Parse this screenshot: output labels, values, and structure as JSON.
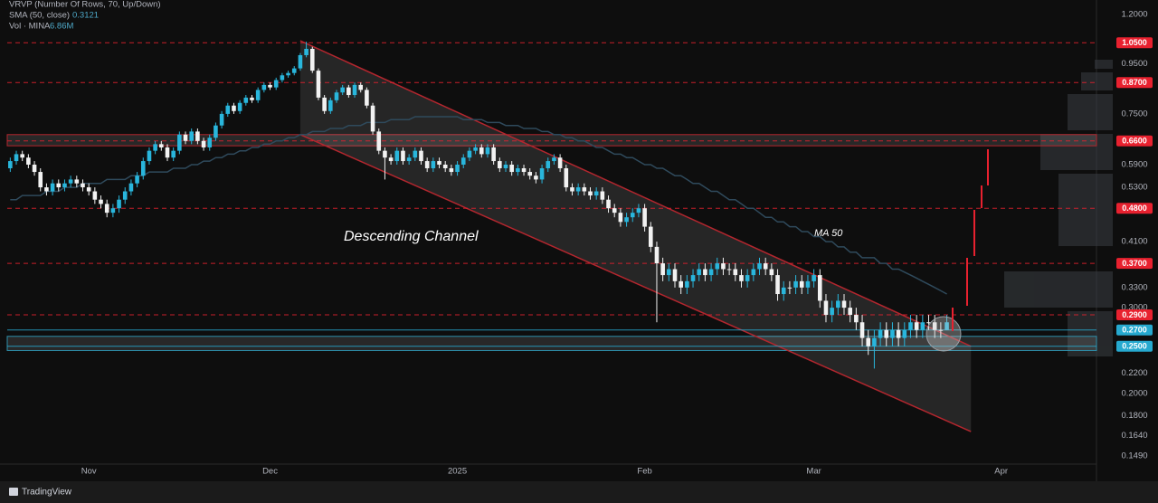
{
  "chart_data": {
    "type": "candlestick",
    "log_scale": true,
    "up_color": "#29b6dc",
    "down_color": "#f2f2f2",
    "ylim": [
      0.142,
      1.285
    ],
    "yticks": [
      {
        "value": 1.2,
        "label": "1.2000"
      },
      {
        "value": 0.95,
        "label": "0.9500"
      },
      {
        "value": 0.75,
        "label": "0.7500"
      },
      {
        "value": 0.59,
        "label": "0.5900"
      },
      {
        "value": 0.53,
        "label": "0.5300"
      },
      {
        "value": 0.41,
        "label": "0.4100"
      },
      {
        "value": 0.33,
        "label": "0.3300"
      },
      {
        "value": 0.3,
        "label": "0.3000"
      },
      {
        "value": 0.22,
        "label": "0.2200"
      },
      {
        "value": 0.2,
        "label": "0.2000"
      },
      {
        "value": 0.18,
        "label": "0.1800"
      },
      {
        "value": 0.164,
        "label": "0.1640"
      },
      {
        "value": 0.149,
        "label": "0.1490"
      }
    ],
    "categories": [
      null,
      null,
      null,
      null,
      null,
      null,
      null,
      null,
      null,
      null,
      null,
      null,
      null,
      "Nov",
      null,
      null,
      null,
      null,
      null,
      null,
      null,
      null,
      null,
      null,
      null,
      null,
      null,
      null,
      null,
      null,
      null,
      null,
      null,
      null,
      null,
      null,
      null,
      null,
      null,
      null,
      null,
      null,
      null,
      "Dec",
      null,
      null,
      null,
      null,
      null,
      null,
      null,
      null,
      null,
      null,
      null,
      null,
      null,
      null,
      null,
      null,
      null,
      null,
      null,
      null,
      null,
      null,
      null,
      null,
      null,
      null,
      null,
      null,
      null,
      null,
      "2025",
      null,
      null,
      null,
      null,
      null,
      null,
      null,
      null,
      null,
      null,
      null,
      null,
      null,
      null,
      null,
      null,
      null,
      null,
      null,
      null,
      null,
      null,
      null,
      null,
      null,
      null,
      null,
      null,
      null,
      null,
      "Feb",
      null,
      null,
      null,
      null,
      null,
      null,
      null,
      null,
      null,
      null,
      null,
      null,
      null,
      null,
      null,
      null,
      null,
      null,
      null,
      null,
      null,
      null,
      null,
      null,
      null,
      null,
      null,
      "Mar",
      null,
      null,
      null,
      null,
      null,
      null,
      null,
      null,
      null,
      null,
      null,
      null,
      null,
      null,
      null,
      null,
      null,
      null,
      null,
      null,
      null,
      null,
      null,
      null,
      null,
      null,
      null,
      null,
      null,
      null,
      "Apr"
    ],
    "candles": {
      "open": [
        0.58,
        0.6,
        0.62,
        0.61,
        0.59,
        0.57,
        0.53,
        0.52,
        0.54,
        0.53,
        0.54,
        0.55,
        0.54,
        0.53,
        0.52,
        0.5,
        0.49,
        0.47,
        0.48,
        0.5,
        0.52,
        0.54,
        0.56,
        0.6,
        0.63,
        0.65,
        0.64,
        0.61,
        0.63,
        0.68,
        0.66,
        0.69,
        0.66,
        0.64,
        0.67,
        0.71,
        0.75,
        0.78,
        0.76,
        0.79,
        0.81,
        0.8,
        0.84,
        0.86,
        0.85,
        0.88,
        0.9,
        0.91,
        0.93,
        0.99,
        1.02,
        0.92,
        0.81,
        0.76,
        0.8,
        0.83,
        0.85,
        0.82,
        0.86,
        0.84,
        0.78,
        0.69,
        0.63,
        0.61,
        0.6,
        0.63,
        0.6,
        0.61,
        0.63,
        0.6,
        0.58,
        0.6,
        0.59,
        0.58,
        0.57,
        0.59,
        0.61,
        0.63,
        0.64,
        0.62,
        0.64,
        0.6,
        0.58,
        0.59,
        0.57,
        0.58,
        0.57,
        0.56,
        0.55,
        0.58,
        0.6,
        0.61,
        0.58,
        0.53,
        0.52,
        0.53,
        0.52,
        0.51,
        0.52,
        0.5,
        0.48,
        0.47,
        0.45,
        0.46,
        0.47,
        0.48,
        0.44,
        0.4,
        0.37,
        0.35,
        0.36,
        0.34,
        0.33,
        0.34,
        0.35,
        0.36,
        0.35,
        0.36,
        0.37,
        0.36,
        0.36,
        0.35,
        0.34,
        0.35,
        0.36,
        0.37,
        0.36,
        0.35,
        0.32,
        0.33,
        0.33,
        0.34,
        0.33,
        0.34,
        0.35,
        0.31,
        0.29,
        0.3,
        0.31,
        0.3,
        0.29,
        0.28,
        0.26,
        0.25,
        0.26,
        0.27,
        0.26,
        0.27,
        0.26,
        0.27,
        0.28,
        0.27,
        0.28,
        0.28,
        0.27,
        0.27,
        null,
        null,
        null,
        null,
        null,
        null,
        null,
        null,
        null
      ],
      "high": [
        0.61,
        0.63,
        0.63,
        0.62,
        0.6,
        0.58,
        0.54,
        0.55,
        0.55,
        0.55,
        0.56,
        0.56,
        0.55,
        0.54,
        0.53,
        0.51,
        0.5,
        0.49,
        0.51,
        0.53,
        0.55,
        0.57,
        0.61,
        0.64,
        0.66,
        0.66,
        0.65,
        0.64,
        0.69,
        0.69,
        0.7,
        0.7,
        0.67,
        0.68,
        0.72,
        0.76,
        0.79,
        0.79,
        0.8,
        0.82,
        0.82,
        0.85,
        0.87,
        0.87,
        0.89,
        0.91,
        0.92,
        0.94,
        1.0,
        1.055,
        1.03,
        0.93,
        0.82,
        0.81,
        0.84,
        0.86,
        0.86,
        0.87,
        0.87,
        0.85,
        0.79,
        0.7,
        0.64,
        0.62,
        0.64,
        0.64,
        0.62,
        0.64,
        0.64,
        0.61,
        0.61,
        0.61,
        0.6,
        0.59,
        0.6,
        0.62,
        0.64,
        0.65,
        0.65,
        0.65,
        0.65,
        0.61,
        0.6,
        0.6,
        0.59,
        0.59,
        0.58,
        0.57,
        0.59,
        0.61,
        0.62,
        0.62,
        0.59,
        0.54,
        0.54,
        0.54,
        0.53,
        0.53,
        0.53,
        0.51,
        0.49,
        0.48,
        0.47,
        0.48,
        0.49,
        0.49,
        0.45,
        0.41,
        0.38,
        0.37,
        0.37,
        0.35,
        0.35,
        0.36,
        0.37,
        0.37,
        0.37,
        0.38,
        0.38,
        0.37,
        0.37,
        0.36,
        0.36,
        0.37,
        0.38,
        0.38,
        0.37,
        0.36,
        0.34,
        0.34,
        0.35,
        0.35,
        0.35,
        0.36,
        0.36,
        0.32,
        0.31,
        0.32,
        0.32,
        0.31,
        0.3,
        0.29,
        0.27,
        0.27,
        0.28,
        0.28,
        0.28,
        0.28,
        0.28,
        0.29,
        0.29,
        0.29,
        0.29,
        0.29,
        0.28,
        0.29,
        null,
        null,
        null,
        null,
        null,
        null,
        null,
        null,
        null
      ],
      "low": [
        0.57,
        0.59,
        0.6,
        0.58,
        0.56,
        0.52,
        0.51,
        0.51,
        0.52,
        0.52,
        0.53,
        0.53,
        0.52,
        0.51,
        0.49,
        0.48,
        0.46,
        0.46,
        0.47,
        0.49,
        0.51,
        0.53,
        0.55,
        0.59,
        0.62,
        0.63,
        0.6,
        0.6,
        0.62,
        0.65,
        0.65,
        0.65,
        0.63,
        0.63,
        0.66,
        0.7,
        0.74,
        0.75,
        0.75,
        0.78,
        0.79,
        0.79,
        0.83,
        0.84,
        0.84,
        0.87,
        0.89,
        0.9,
        0.92,
        0.98,
        0.91,
        0.8,
        0.75,
        0.75,
        0.79,
        0.82,
        0.81,
        0.81,
        0.83,
        0.77,
        0.68,
        0.62,
        0.55,
        0.59,
        0.59,
        0.59,
        0.59,
        0.6,
        0.59,
        0.57,
        0.57,
        0.58,
        0.57,
        0.56,
        0.56,
        0.58,
        0.6,
        0.62,
        0.61,
        0.61,
        0.59,
        0.57,
        0.57,
        0.56,
        0.56,
        0.56,
        0.55,
        0.54,
        0.54,
        0.57,
        0.59,
        0.57,
        0.52,
        0.51,
        0.51,
        0.51,
        0.5,
        0.5,
        0.49,
        0.47,
        0.46,
        0.44,
        0.44,
        0.45,
        0.46,
        0.43,
        0.39,
        0.28,
        0.34,
        0.34,
        0.33,
        0.32,
        0.32,
        0.33,
        0.34,
        0.34,
        0.34,
        0.35,
        0.35,
        0.35,
        0.34,
        0.33,
        0.33,
        0.34,
        0.35,
        0.35,
        0.34,
        0.31,
        0.31,
        0.32,
        0.32,
        0.32,
        0.32,
        0.33,
        0.3,
        0.28,
        0.28,
        0.29,
        0.29,
        0.28,
        0.27,
        0.25,
        0.24,
        0.225,
        0.25,
        0.25,
        0.25,
        0.25,
        0.25,
        0.26,
        0.26,
        0.26,
        0.27,
        0.26,
        0.26,
        0.27,
        null,
        null,
        null,
        null,
        null,
        null,
        null,
        null,
        null
      ],
      "close": [
        0.6,
        0.62,
        0.61,
        0.59,
        0.57,
        0.53,
        0.52,
        0.54,
        0.53,
        0.54,
        0.55,
        0.54,
        0.53,
        0.52,
        0.5,
        0.49,
        0.47,
        0.48,
        0.5,
        0.52,
        0.54,
        0.56,
        0.6,
        0.63,
        0.65,
        0.64,
        0.61,
        0.63,
        0.68,
        0.66,
        0.69,
        0.66,
        0.64,
        0.67,
        0.71,
        0.75,
        0.78,
        0.76,
        0.79,
        0.81,
        0.8,
        0.84,
        0.86,
        0.85,
        0.88,
        0.9,
        0.91,
        0.93,
        0.99,
        1.02,
        0.92,
        0.81,
        0.76,
        0.8,
        0.83,
        0.85,
        0.82,
        0.86,
        0.84,
        0.78,
        0.69,
        0.63,
        0.61,
        0.6,
        0.63,
        0.6,
        0.61,
        0.63,
        0.6,
        0.58,
        0.6,
        0.59,
        0.58,
        0.57,
        0.59,
        0.61,
        0.63,
        0.64,
        0.62,
        0.64,
        0.6,
        0.58,
        0.59,
        0.57,
        0.58,
        0.57,
        0.56,
        0.55,
        0.58,
        0.6,
        0.61,
        0.58,
        0.53,
        0.52,
        0.53,
        0.52,
        0.51,
        0.52,
        0.5,
        0.48,
        0.47,
        0.45,
        0.46,
        0.47,
        0.48,
        0.44,
        0.4,
        0.37,
        0.35,
        0.36,
        0.34,
        0.33,
        0.34,
        0.35,
        0.36,
        0.35,
        0.36,
        0.37,
        0.36,
        0.36,
        0.35,
        0.34,
        0.35,
        0.36,
        0.37,
        0.36,
        0.35,
        0.32,
        0.33,
        0.33,
        0.34,
        0.33,
        0.34,
        0.35,
        0.31,
        0.29,
        0.3,
        0.31,
        0.3,
        0.29,
        0.28,
        0.26,
        0.25,
        0.26,
        0.27,
        0.26,
        0.27,
        0.26,
        0.27,
        0.28,
        0.27,
        0.28,
        0.28,
        0.27,
        0.27,
        0.28,
        null,
        null,
        null,
        null,
        null,
        null,
        null,
        null,
        null
      ]
    },
    "ma": {
      "label": "MA 50",
      "color": "#2f4a5c",
      "values": [
        0.5,
        0.5,
        0.51,
        0.51,
        0.51,
        0.51,
        0.52,
        0.52,
        0.52,
        0.53,
        0.53,
        0.53,
        0.54,
        0.54,
        0.54,
        0.54,
        0.55,
        0.55,
        0.55,
        0.55,
        0.56,
        0.56,
        0.56,
        0.57,
        0.57,
        0.57,
        0.57,
        0.58,
        0.58,
        0.58,
        0.59,
        0.59,
        0.6,
        0.6,
        0.61,
        0.61,
        0.62,
        0.62,
        0.63,
        0.63,
        0.64,
        0.64,
        0.65,
        0.65,
        0.66,
        0.66,
        0.67,
        0.67,
        0.68,
        0.68,
        0.69,
        0.69,
        0.69,
        0.7,
        0.7,
        0.7,
        0.71,
        0.71,
        0.71,
        0.72,
        0.72,
        0.72,
        0.72,
        0.73,
        0.73,
        0.73,
        0.73,
        0.74,
        0.74,
        0.74,
        0.74,
        0.74,
        0.74,
        0.74,
        0.74,
        0.73,
        0.73,
        0.73,
        0.73,
        0.72,
        0.72,
        0.72,
        0.71,
        0.71,
        0.71,
        0.7,
        0.7,
        0.7,
        0.69,
        0.69,
        0.68,
        0.68,
        0.67,
        0.67,
        0.66,
        0.66,
        0.65,
        0.64,
        0.64,
        0.63,
        0.62,
        0.62,
        0.61,
        0.61,
        0.6,
        0.59,
        0.59,
        0.58,
        0.58,
        0.57,
        0.56,
        0.56,
        0.55,
        0.54,
        0.54,
        0.53,
        0.52,
        0.52,
        0.51,
        0.5,
        0.5,
        0.49,
        0.48,
        0.48,
        0.47,
        0.46,
        0.46,
        0.45,
        0.45,
        0.44,
        0.44,
        0.43,
        0.43,
        0.42,
        0.42,
        0.41,
        0.41,
        0.4,
        0.4,
        0.39,
        0.39,
        0.38,
        0.38,
        0.38,
        0.37,
        0.37,
        0.36,
        0.36,
        0.355,
        0.35,
        0.345,
        0.34,
        0.335,
        0.33,
        0.325,
        0.32,
        null,
        null,
        null,
        null,
        null,
        null,
        null,
        null,
        null
      ]
    },
    "levels": [
      {
        "value": 1.05,
        "label": "1.0500",
        "color": "#e8212f"
      },
      {
        "value": 0.87,
        "label": "0.8700",
        "color": "#e8212f"
      },
      {
        "value": 0.66,
        "label": "0.6600",
        "color": "#e8212f"
      },
      {
        "value": 0.48,
        "label": "0.4800",
        "color": "#e8212f"
      },
      {
        "value": 0.37,
        "label": "0.3700",
        "color": "#e8212f"
      },
      {
        "value": 0.29,
        "label": "0.2900",
        "color": "#e8212f"
      },
      {
        "value": 0.27,
        "label": "0.2700",
        "color": "#26a9cf"
      },
      {
        "value": 0.25,
        "label": "0.2500",
        "color": "#26a9cf"
      }
    ],
    "zones": [
      {
        "from": 0.645,
        "to": 0.68
      },
      {
        "from": 0.245,
        "to": 0.262
      }
    ],
    "channel": {
      "label": "Descending Channel",
      "upper": [
        [
          48,
          1.06
        ],
        [
          159,
          0.25
        ]
      ],
      "lower": [
        [
          48,
          0.68
        ],
        [
          159,
          0.167
        ]
      ]
    },
    "legend": {
      "vrvp": "VRVP (Number Of Rows, 70, Up/Down)",
      "sma": "SMA (50, close)",
      "sma_value": "0.3121",
      "vol": "Vol · MINA",
      "vol_value": "6.86M"
    },
    "brand": "TradingView"
  }
}
